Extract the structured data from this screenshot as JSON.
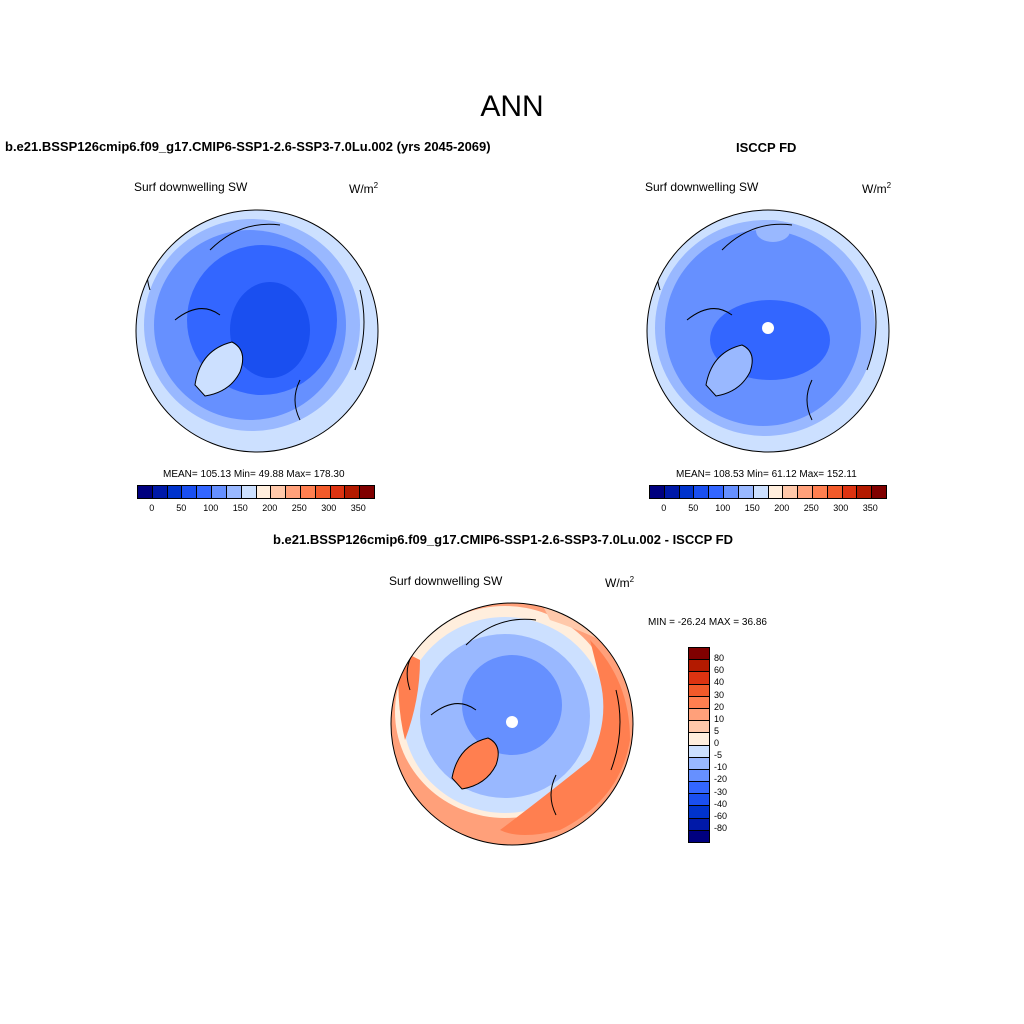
{
  "main_title": "ANN",
  "panels": [
    {
      "title": "b.e21.BSSP126cmip6.f09_g17.CMIP6-SSP1-2.6-SSP3-7.0Lu.002 (yrs 2045-2069)",
      "variable": "Surf downwelling SW",
      "units": "W/m",
      "units_sup": "2",
      "stats": "MEAN= 105.13  Min=  49.88  Max= 178.30"
    },
    {
      "title": "ISCCP FD",
      "variable": "Surf downwelling SW",
      "units": "W/m",
      "units_sup": "2",
      "stats": "MEAN= 108.53  Min=  61.12  Max= 152.11"
    },
    {
      "title": "b.e21.BSSP126cmip6.f09_g17.CMIP6-SSP1-2.6-SSP3-7.0Lu.002 - ISCCP FD",
      "variable": "Surf downwelling SW",
      "units": "W/m",
      "units_sup": "2",
      "stats": "MIN = -26.24 MAX =  36.86"
    }
  ],
  "abs_colorbar": {
    "colors": [
      "#00007f",
      "#0019a8",
      "#0033cc",
      "#1a4ff0",
      "#3366ff",
      "#6690ff",
      "#99b8ff",
      "#cce0ff",
      "#ffeedd",
      "#ffc8aa",
      "#ffa07a",
      "#ff7f50",
      "#f25a2a",
      "#dd3311",
      "#b31a00",
      "#800000"
    ],
    "tick_labels": [
      "0",
      "50",
      "100",
      "150",
      "200",
      "250",
      "300",
      "350"
    ]
  },
  "diff_colorbar": {
    "colors": [
      "#800000",
      "#b31a00",
      "#dd3311",
      "#f25a2a",
      "#ff7f50",
      "#ffa07a",
      "#ffc8aa",
      "#ffeedd",
      "#cce0ff",
      "#99b8ff",
      "#6690ff",
      "#3366ff",
      "#1a4ff0",
      "#0033cc",
      "#0019a8",
      "#00007f"
    ],
    "tick_labels": [
      "80",
      "60",
      "40",
      "30",
      "20",
      "10",
      "5",
      "0",
      "-5",
      "-10",
      "-20",
      "-30",
      "-40",
      "-60",
      "-80"
    ]
  },
  "map_colors": {
    "light": "#cce0ff",
    "mid": "#99b8ff",
    "base": "#6690ff",
    "deep": "#3366ff",
    "deeper": "#1a4ff0",
    "warm1": "#ffc8aa",
    "warm2": "#ff7f50",
    "warm3": "#f25a2a",
    "pale": "#ffeedd",
    "coast": "#000000"
  }
}
